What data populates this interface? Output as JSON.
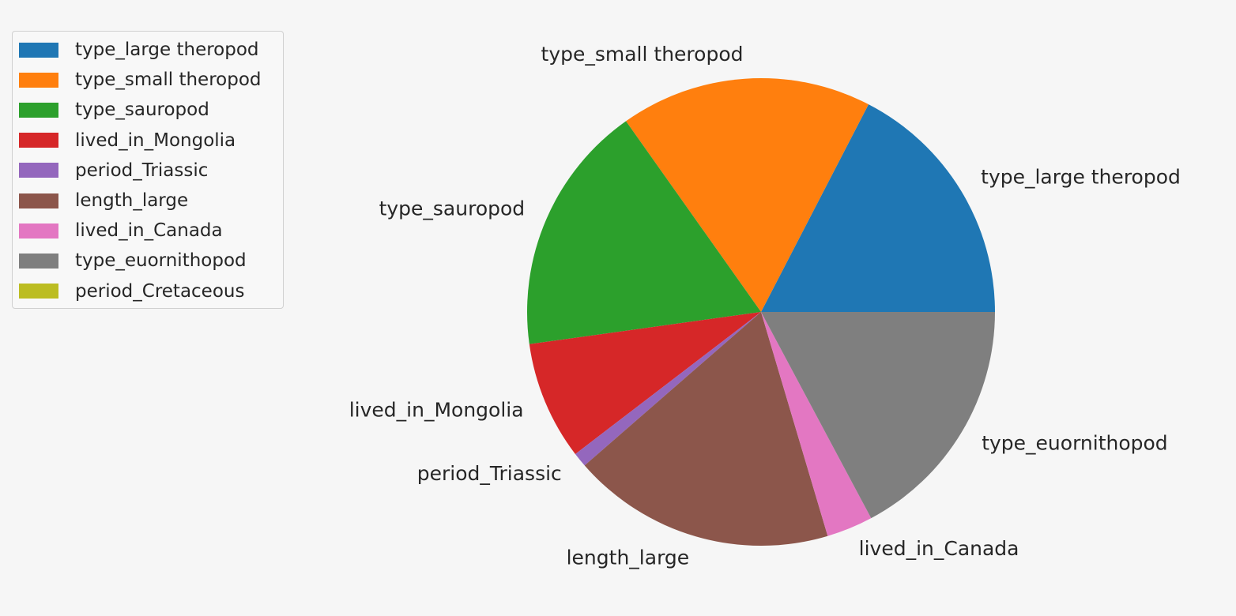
{
  "chart_data": {
    "type": "pie",
    "start_angle": 0,
    "direction": "counterclockwise",
    "legend_position": "top-left",
    "slices": [
      {
        "label": "type_large theropod",
        "value": 17.4,
        "color": "#1f77b4"
      },
      {
        "label": "type_small theropod",
        "value": 17.4,
        "color": "#ff7f0e"
      },
      {
        "label": "type_sauropod",
        "value": 17.4,
        "color": "#2ca02c"
      },
      {
        "label": "lived_in_Mongolia",
        "value": 8.2,
        "color": "#d62728"
      },
      {
        "label": "period_Triassic",
        "value": 1.0,
        "color": "#9467bd"
      },
      {
        "label": "length_large",
        "value": 18.2,
        "color": "#8c564b"
      },
      {
        "label": "lived_in_Canada",
        "value": 3.2,
        "color": "#e377c2"
      },
      {
        "label": "type_euornithopod",
        "value": 17.2,
        "color": "#7f7f7f"
      },
      {
        "label": "period_Cretaceous",
        "value": 0,
        "color": "#bcbd22"
      }
    ]
  }
}
